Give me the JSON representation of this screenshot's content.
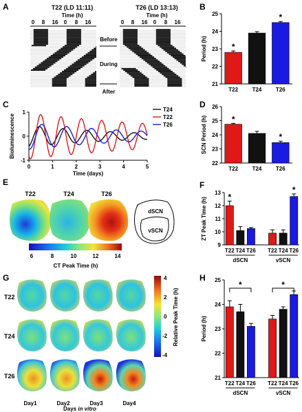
{
  "panels": {
    "A": {
      "letter": "A",
      "titles": [
        "T22 (LD 11:11)",
        "T26 (LD 13:13)"
      ],
      "time_label": "Time (h)",
      "ticks": [
        "0",
        "8",
        "16",
        "0",
        "8",
        "16"
      ],
      "phases": [
        "Before",
        "During",
        "After"
      ]
    },
    "B": {
      "letter": "B"
    },
    "C": {
      "letter": "C"
    },
    "D": {
      "letter": "D"
    },
    "E": {
      "letter": "E",
      "map_titles": [
        "T22",
        "T24",
        "T26"
      ],
      "regions": [
        "dSCN",
        "vSCN"
      ],
      "colorbar_ticks": [
        "6",
        "8",
        "10",
        "12",
        "14"
      ],
      "colorbar_label": "CT Peak Time (h)"
    },
    "F": {
      "letter": "F"
    },
    "G": {
      "letter": "G",
      "row_labels": [
        "T22",
        "T24",
        "T26"
      ],
      "day_labels": [
        "Day1",
        "Day2",
        "Day3",
        "Day4"
      ],
      "xlabel_prefix": "Days ",
      "xlabel_italic": "in vitro",
      "colorbar_ticks": [
        "4",
        "2",
        "0",
        "-2",
        "-4"
      ],
      "colorbar_label": "Relative Peak Time (h)"
    },
    "H": {
      "letter": "H"
    }
  },
  "colors": {
    "T22": "#e01818",
    "T24": "#111111",
    "T26": "#1a1ae0"
  },
  "chart_data": [
    {
      "id": "B",
      "type": "bar",
      "categories": [
        "T22",
        "T24",
        "T26"
      ],
      "values": [
        22.8,
        23.9,
        24.5
      ],
      "errors": [
        0.08,
        0.08,
        0.06
      ],
      "significant": [
        true,
        false,
        true
      ],
      "ylabel": "Period (h)",
      "ylim": [
        21,
        25
      ],
      "yticks": [
        "21",
        "22",
        "23",
        "24",
        "25"
      ]
    },
    {
      "id": "C",
      "type": "line",
      "xlabel": "Time (days)",
      "ylabel": "Bioluminescence",
      "xlim": [
        0,
        5
      ],
      "ylim": [
        -1,
        1
      ],
      "xticks": [
        "0",
        "1",
        "2",
        "3",
        "4",
        "5"
      ],
      "yticks": [
        "-1",
        "0",
        "1"
      ],
      "series": [
        {
          "name": "T24",
          "period_days": 1.0,
          "amplitude": 0.45,
          "peak_day": 0.45,
          "decay": 0.25
        },
        {
          "name": "T22",
          "period_days": 0.86,
          "amplitude": 0.95,
          "peak_day": 0.5,
          "decay": 0.12
        },
        {
          "name": "T26",
          "period_days": 1.05,
          "amplitude": 0.55,
          "peak_day": 0.55,
          "decay": 0.2
        }
      ]
    },
    {
      "id": "D",
      "type": "bar",
      "categories": [
        "T22",
        "T24",
        "T26"
      ],
      "values": [
        24.75,
        24.1,
        23.45
      ],
      "errors": [
        0.06,
        0.15,
        0.1
      ],
      "significant": [
        true,
        false,
        true
      ],
      "ylabel": "SCN Period (h)",
      "ylim": [
        22,
        26
      ],
      "yticks": [
        "22",
        "23",
        "24",
        "25",
        "26"
      ]
    },
    {
      "id": "F",
      "type": "bar",
      "categories": [
        "T22",
        "T24",
        "T26",
        "T22",
        "T24",
        "T26"
      ],
      "groups": [
        "dSCN",
        "vSCN"
      ],
      "values": [
        12.0,
        10.1,
        10.25,
        9.9,
        9.9,
        12.7
      ],
      "errors": [
        0.35,
        0.3,
        0.08,
        0.25,
        0.25,
        0.2
      ],
      "significant": [
        true,
        false,
        false,
        false,
        false,
        true
      ],
      "ylabel": "ZT Peak Time (h)",
      "ylim": [
        9,
        13
      ],
      "yticks": [
        "9",
        "10",
        "11",
        "12",
        "13"
      ]
    },
    {
      "id": "H",
      "type": "bar",
      "categories": [
        "T22",
        "T24",
        "T26",
        "T22",
        "T24",
        "T26"
      ],
      "groups": [
        "dSCN",
        "vSCN"
      ],
      "values": [
        23.9,
        23.7,
        23.1,
        23.4,
        23.8,
        24.4
      ],
      "errors": [
        0.25,
        0.3,
        0.12,
        0.15,
        0.1,
        0.15
      ],
      "brackets": [
        {
          "from": 0,
          "to": 2,
          "label": "*"
        },
        {
          "from": 3,
          "to": 5,
          "label": "*"
        }
      ],
      "ylabel": "Period (h)",
      "ylim": [
        21,
        25
      ],
      "yticks": [
        "21",
        "22",
        "23",
        "24",
        "25"
      ]
    }
  ]
}
